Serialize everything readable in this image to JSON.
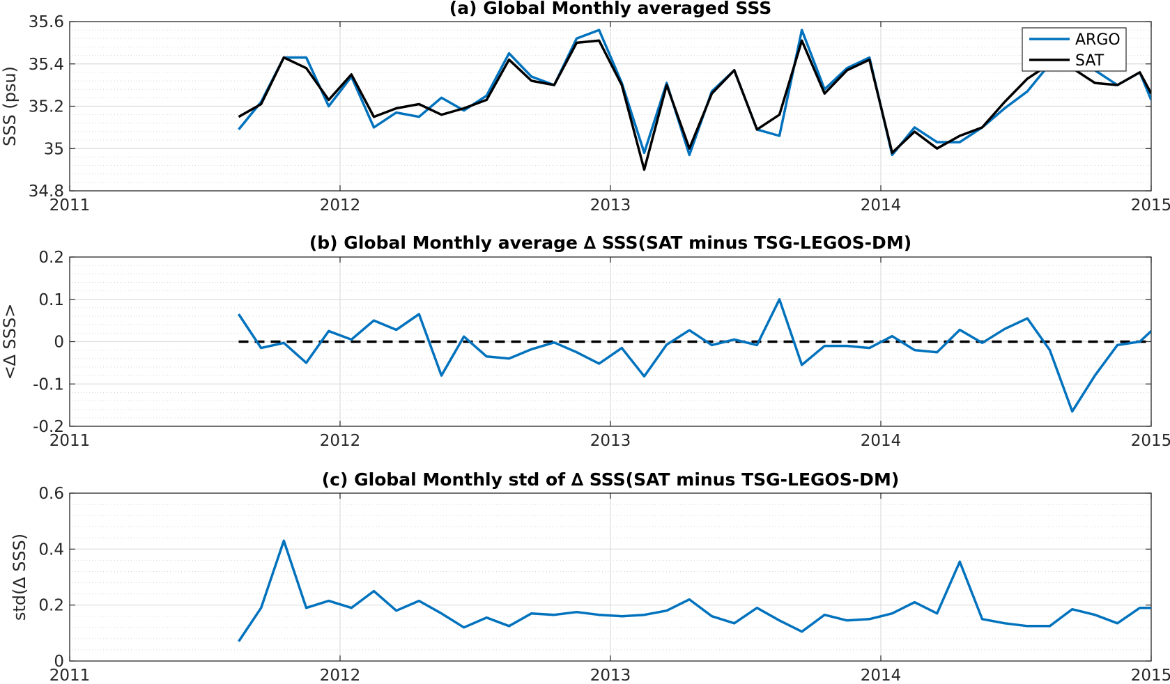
{
  "chart_data": [
    {
      "type": "line",
      "title": "(a) Global Monthly averaged SSS",
      "xlabel": "",
      "ylabel": "SSS (psu)",
      "xlim": [
        2011,
        2015
      ],
      "ylim": [
        34.8,
        35.6
      ],
      "xticks": [
        2011,
        2012,
        2013,
        2014,
        2015
      ],
      "xtick_labels": [
        "2011",
        "2012",
        "2013",
        "2014",
        "2015"
      ],
      "yticks": [
        34.8,
        35,
        35.2,
        35.4,
        35.6
      ],
      "ytick_labels": [
        "34.8",
        "35",
        "35.2",
        "35.4",
        "35.6"
      ],
      "grid": true,
      "minor_grid": true,
      "legend_position": "top-right",
      "x": [
        2011.625,
        2011.708,
        2011.792,
        2011.875,
        2011.958,
        2012.042,
        2012.125,
        2012.208,
        2012.292,
        2012.375,
        2012.458,
        2012.542,
        2012.625,
        2012.708,
        2012.792,
        2012.875,
        2012.958,
        2013.042,
        2013.125,
        2013.208,
        2013.292,
        2013.375,
        2013.458,
        2013.542,
        2013.625,
        2013.708,
        2013.792,
        2013.875,
        2013.958,
        2014.042,
        2014.125,
        2014.208,
        2014.292,
        2014.375,
        2014.458,
        2014.542,
        2014.625,
        2014.708,
        2014.792,
        2014.875,
        2014.958,
        2015.0
      ],
      "series": [
        {
          "name": "ARGO",
          "color": "#0072BD",
          "values": [
            35.09,
            35.22,
            35.43,
            35.43,
            35.2,
            35.34,
            35.1,
            35.17,
            35.15,
            35.24,
            35.18,
            35.25,
            35.45,
            35.34,
            35.3,
            35.52,
            35.56,
            35.31,
            34.98,
            35.31,
            34.97,
            35.27,
            35.37,
            35.09,
            35.06,
            35.56,
            35.28,
            35.38,
            35.43,
            34.97,
            35.1,
            35.03,
            35.03,
            35.1,
            35.19,
            35.27,
            35.4,
            35.4,
            35.37,
            35.3,
            35.36,
            35.23
          ]
        },
        {
          "name": "SAT",
          "color": "#000000",
          "values": [
            35.15,
            35.21,
            35.43,
            35.38,
            35.23,
            35.35,
            35.15,
            35.19,
            35.21,
            35.16,
            35.19,
            35.23,
            35.42,
            35.32,
            35.3,
            35.5,
            35.51,
            35.3,
            34.9,
            35.3,
            35.0,
            35.26,
            35.37,
            35.09,
            35.16,
            35.51,
            35.26,
            35.37,
            35.42,
            34.98,
            35.08,
            35.0,
            35.06,
            35.1,
            35.22,
            35.33,
            35.4,
            35.38,
            35.31,
            35.3,
            35.36,
            35.26
          ]
        }
      ]
    },
    {
      "type": "line",
      "title": "(b) Global Monthly average ∆ SSS(SAT minus TSG-LEGOS-DM)",
      "xlabel": "",
      "ylabel": "<∆ SSS>",
      "xlim": [
        2011,
        2015
      ],
      "ylim": [
        -0.2,
        0.2
      ],
      "xticks": [
        2011,
        2012,
        2013,
        2014,
        2015
      ],
      "xtick_labels": [
        "2011",
        "2012",
        "2013",
        "2014",
        "2015"
      ],
      "yticks": [
        -0.2,
        -0.1,
        0,
        0.1,
        0.2
      ],
      "ytick_labels": [
        "-0.2",
        "-0.1",
        "0",
        "0.1",
        "0.2"
      ],
      "grid": true,
      "minor_grid": true,
      "reference_line": {
        "y": 0,
        "from_x": 2011.625,
        "to_x": 2015.0,
        "color": "#000000",
        "style": "dashed"
      },
      "x": [
        2011.625,
        2011.708,
        2011.792,
        2011.875,
        2011.958,
        2012.042,
        2012.125,
        2012.208,
        2012.292,
        2012.375,
        2012.458,
        2012.542,
        2012.625,
        2012.708,
        2012.792,
        2012.875,
        2012.958,
        2013.042,
        2013.125,
        2013.208,
        2013.292,
        2013.375,
        2013.458,
        2013.542,
        2013.625,
        2013.708,
        2013.792,
        2013.875,
        2013.958,
        2014.042,
        2014.125,
        2014.208,
        2014.292,
        2014.375,
        2014.458,
        2014.542,
        2014.625,
        2014.708,
        2014.792,
        2014.875,
        2014.958,
        2015.0
      ],
      "series": [
        {
          "color": "#0072BD",
          "values": [
            0.065,
            -0.015,
            -0.003,
            -0.05,
            0.025,
            0.005,
            0.05,
            0.028,
            0.065,
            -0.08,
            0.012,
            -0.035,
            -0.04,
            -0.018,
            -0.002,
            -0.025,
            -0.052,
            -0.015,
            -0.082,
            -0.007,
            0.027,
            -0.008,
            0.005,
            -0.008,
            0.1,
            -0.055,
            -0.01,
            -0.01,
            -0.015,
            0.013,
            -0.02,
            -0.025,
            0.028,
            -0.003,
            0.03,
            0.055,
            -0.02,
            -0.165,
            -0.08,
            -0.008,
            0.0,
            0.025
          ]
        }
      ]
    },
    {
      "type": "line",
      "title": "(c) Global Monthly std of ∆ SSS(SAT minus TSG-LEGOS-DM)",
      "xlabel": "",
      "ylabel": "std(∆ SSS)",
      "xlim": [
        2011,
        2015
      ],
      "ylim": [
        0,
        0.6
      ],
      "xticks": [
        2011,
        2012,
        2013,
        2014,
        2015
      ],
      "xtick_labels": [
        "2011",
        "2012",
        "2013",
        "2014",
        "2015"
      ],
      "yticks": [
        0,
        0.2,
        0.4,
        0.6
      ],
      "ytick_labels": [
        "0",
        "0.2",
        "0.4",
        "0.6"
      ],
      "grid": true,
      "minor_grid": true,
      "x": [
        2011.625,
        2011.708,
        2011.792,
        2011.875,
        2011.958,
        2012.042,
        2012.125,
        2012.208,
        2012.292,
        2012.375,
        2012.458,
        2012.542,
        2012.625,
        2012.708,
        2012.792,
        2012.875,
        2012.958,
        2013.042,
        2013.125,
        2013.208,
        2013.292,
        2013.375,
        2013.458,
        2013.542,
        2013.625,
        2013.708,
        2013.792,
        2013.875,
        2013.958,
        2014.042,
        2014.125,
        2014.208,
        2014.292,
        2014.375,
        2014.458,
        2014.542,
        2014.625,
        2014.708,
        2014.792,
        2014.875,
        2014.958,
        2015.0
      ],
      "series": [
        {
          "color": "#0072BD",
          "values": [
            0.07,
            0.19,
            0.43,
            0.19,
            0.215,
            0.19,
            0.25,
            0.18,
            0.215,
            0.17,
            0.12,
            0.155,
            0.125,
            0.17,
            0.165,
            0.175,
            0.165,
            0.16,
            0.165,
            0.18,
            0.22,
            0.16,
            0.135,
            0.19,
            0.145,
            0.105,
            0.165,
            0.145,
            0.15,
            0.17,
            0.21,
            0.17,
            0.355,
            0.15,
            0.135,
            0.125,
            0.125,
            0.185,
            0.165,
            0.135,
            0.19,
            0.19
          ]
        }
      ]
    }
  ]
}
